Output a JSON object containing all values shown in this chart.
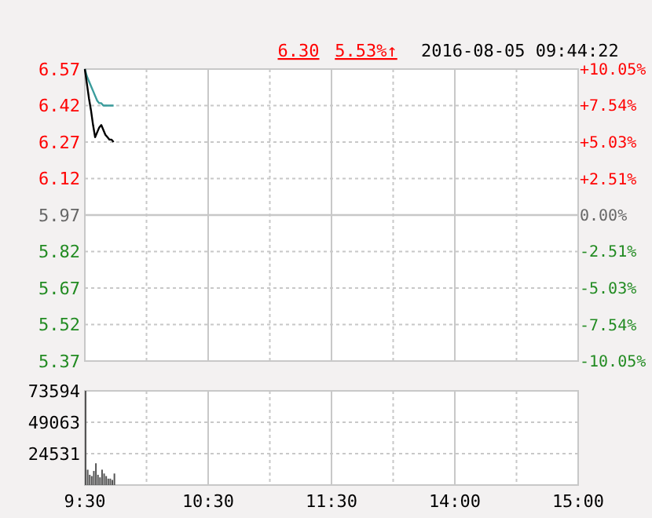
{
  "chart_data": [
    {
      "type": "line",
      "annotations": [
        "6.30",
        "5.53%↑",
        "2016-08-05 09:44:22"
      ],
      "categories": [
        null,
        null,
        null,
        null,
        null,
        null,
        null,
        null,
        null,
        null,
        null,
        null,
        null,
        null,
        null,
        null,
        null,
        null,
        null,
        null,
        null,
        null,
        null,
        null,
        null,
        null,
        null,
        null,
        null,
        null,
        null,
        null,
        null,
        null,
        null,
        null,
        null,
        null,
        null,
        null,
        null,
        null,
        null,
        null,
        null,
        null,
        null,
        null,
        null,
        null,
        null,
        null,
        null,
        null,
        null,
        null,
        null,
        null,
        null,
        null,
        null,
        null,
        null,
        null,
        null,
        null,
        null,
        null,
        null,
        null,
        null,
        null,
        null,
        null,
        null,
        null,
        null,
        null,
        null,
        null,
        null,
        null,
        null,
        null,
        null,
        null,
        null,
        null,
        null,
        null,
        null,
        null,
        null,
        null,
        null,
        null,
        null,
        null,
        null,
        null,
        null,
        null,
        null,
        null,
        null,
        null,
        null,
        null,
        null,
        null,
        null,
        null,
        null,
        null,
        null,
        null,
        null,
        null,
        null,
        null,
        null,
        null,
        null,
        null,
        null,
        null,
        null,
        null,
        null,
        null,
        null,
        null,
        null,
        null,
        null,
        null,
        null,
        null,
        null,
        null,
        null,
        null,
        null,
        null,
        null,
        null,
        null,
        null,
        null,
        null,
        null,
        null,
        null,
        null,
        null,
        null,
        null,
        null,
        null,
        null,
        null,
        null,
        null,
        null,
        null,
        null,
        null,
        null,
        null,
        null,
        null,
        null,
        null,
        null,
        null,
        null,
        null,
        null,
        null,
        null,
        null,
        null,
        null,
        null,
        null,
        null,
        null,
        null,
        null,
        null,
        null,
        null,
        null,
        null,
        null,
        null,
        null,
        null,
        null,
        null,
        null,
        null,
        null,
        null,
        null,
        null,
        null,
        null,
        null,
        null,
        null,
        null,
        null,
        null,
        null,
        null,
        null,
        null,
        null,
        null,
        null,
        null,
        null,
        null,
        null,
        null,
        null,
        null,
        null,
        null,
        null,
        null,
        null,
        null,
        null,
        null,
        null,
        null,
        null,
        null,
        null
      ],
      "ylim": [
        5.37,
        6.57
      ],
      "yticks": [
        5.37,
        5.52,
        5.67,
        5.82,
        5.97,
        6.12,
        6.27,
        6.42,
        6.57
      ],
      "y2lim": [
        -10.05,
        10.05
      ],
      "y2ticks": [
        {
          "value": -10.05,
          "label": "-10.05%"
        },
        {
          "value": -7.54,
          "label": "-7.54%"
        },
        {
          "value": -5.03,
          "label": "-5.03%"
        },
        {
          "value": -2.51,
          "label": "-2.51%"
        },
        {
          "value": 0,
          "label": "0.00%"
        },
        {
          "value": 2.51,
          "label": "+2.51%"
        },
        {
          "value": 5.03,
          "label": "+5.03%"
        },
        {
          "value": 7.54,
          "label": "+7.54%"
        },
        {
          "value": 10.05,
          "label": "+10.05%"
        }
      ],
      "tick_labels": "y",
      "grid": true,
      "ref_lines": [
        {
          "axis": "y",
          "value": 5.97,
          "color": "#c8c8c8"
        }
      ],
      "series": [
        {
          "color": "#3a9c9c",
          "values": [
            6.57,
            6.54,
            6.52,
            6.5,
            6.48,
            6.46,
            6.44,
            6.43,
            6.43,
            6.42,
            6.42,
            6.42,
            6.42,
            6.42,
            6.42,
            null,
            null,
            null,
            null,
            null,
            null,
            null,
            null,
            null,
            null,
            null,
            null,
            null,
            null,
            null,
            null,
            null,
            null,
            null,
            null,
            null,
            null,
            null,
            null,
            null,
            null,
            null,
            null,
            null,
            null,
            null,
            null,
            null,
            null,
            null,
            null,
            null,
            null,
            null,
            null,
            null,
            null,
            null,
            null,
            null,
            null,
            null,
            null,
            null,
            null,
            null,
            null,
            null,
            null,
            null,
            null,
            null,
            null,
            null,
            null,
            null,
            null,
            null,
            null,
            null,
            null,
            null,
            null,
            null,
            null,
            null,
            null,
            null,
            null,
            null,
            null,
            null,
            null,
            null,
            null,
            null,
            null,
            null,
            null,
            null,
            null,
            null,
            null,
            null,
            null,
            null,
            null,
            null,
            null,
            null,
            null,
            null,
            null,
            null,
            null,
            null,
            null,
            null,
            null,
            null,
            null,
            null,
            null,
            null,
            null,
            null,
            null,
            null,
            null,
            null,
            null,
            null,
            null,
            null,
            null,
            null,
            null,
            null,
            null,
            null,
            null,
            null,
            null,
            null,
            null,
            null,
            null,
            null,
            null,
            null,
            null,
            null,
            null,
            null,
            null,
            null,
            null,
            null,
            null,
            null,
            null,
            null,
            null,
            null,
            null,
            null,
            null,
            null,
            null,
            null,
            null,
            null,
            null,
            null,
            null,
            null,
            null,
            null,
            null,
            null,
            null,
            null,
            null,
            null,
            null,
            null,
            null,
            null,
            null,
            null,
            null,
            null,
            null,
            null,
            null,
            null,
            null,
            null,
            null,
            null,
            null,
            null,
            null,
            null,
            null,
            null,
            null,
            null,
            null,
            null,
            null,
            null,
            null,
            null,
            null,
            null,
            null,
            null,
            null,
            null,
            null,
            null,
            null,
            null,
            null,
            null,
            null,
            null,
            null,
            null,
            null,
            null,
            null,
            null,
            null,
            null,
            null,
            null,
            null,
            null,
            null
          ]
        },
        {
          "color": "#000000",
          "values": [
            6.57,
            6.51,
            6.45,
            6.4,
            6.34,
            6.29,
            6.31,
            6.33,
            6.34,
            6.32,
            6.3,
            6.29,
            6.28,
            6.28,
            6.27,
            null,
            null,
            null,
            null,
            null,
            null,
            null,
            null,
            null,
            null,
            null,
            null,
            null,
            null,
            null,
            null,
            null,
            null,
            null,
            null,
            null,
            null,
            null,
            null,
            null,
            null,
            null,
            null,
            null,
            null,
            null,
            null,
            null,
            null,
            null,
            null,
            null,
            null,
            null,
            null,
            null,
            null,
            null,
            null,
            null,
            null,
            null,
            null,
            null,
            null,
            null,
            null,
            null,
            null,
            null,
            null,
            null,
            null,
            null,
            null,
            null,
            null,
            null,
            null,
            null,
            null,
            null,
            null,
            null,
            null,
            null,
            null,
            null,
            null,
            null,
            null,
            null,
            null,
            null,
            null,
            null,
            null,
            null,
            null,
            null,
            null,
            null,
            null,
            null,
            null,
            null,
            null,
            null,
            null,
            null,
            null,
            null,
            null,
            null,
            null,
            null,
            null,
            null,
            null,
            null,
            null,
            null,
            null,
            null,
            null,
            null,
            null,
            null,
            null,
            null,
            null,
            null,
            null,
            null,
            null,
            null,
            null,
            null,
            null,
            null,
            null,
            null,
            null,
            null,
            null,
            null,
            null,
            null,
            null,
            null,
            null,
            null,
            null,
            null,
            null,
            null,
            null,
            null,
            null,
            null,
            null,
            null,
            null,
            null,
            null,
            null,
            null,
            null,
            null,
            null,
            null,
            null,
            null,
            null,
            null,
            null,
            null,
            null,
            null,
            null,
            null,
            null,
            null,
            null,
            null,
            null,
            null,
            null,
            null,
            null,
            null,
            null,
            null,
            null,
            null,
            null,
            null,
            null,
            null,
            null,
            null,
            null,
            null,
            null,
            null,
            null,
            null,
            null,
            null,
            null,
            null,
            null,
            null,
            null,
            null,
            null,
            null,
            null,
            null,
            null,
            null,
            null,
            null,
            null,
            null,
            null,
            null,
            null,
            null,
            null,
            null,
            null,
            null,
            null,
            null,
            null,
            null,
            null,
            null,
            null,
            null
          ]
        }
      ]
    },
    {
      "type": "bar",
      "categories": [
        "9:30",
        null,
        null,
        null,
        null,
        null,
        null,
        null,
        null,
        null,
        null,
        null,
        null,
        null,
        null,
        null,
        null,
        null,
        null,
        null,
        null,
        null,
        null,
        null,
        null,
        null,
        null,
        null,
        null,
        null,
        null,
        null,
        null,
        null,
        null,
        null,
        null,
        null,
        null,
        null,
        null,
        null,
        null,
        null,
        null,
        null,
        null,
        null,
        null,
        null,
        null,
        null,
        null,
        null,
        null,
        null,
        null,
        null,
        null,
        null,
        "10:30",
        null,
        null,
        null,
        null,
        null,
        null,
        null,
        null,
        null,
        null,
        null,
        null,
        null,
        null,
        null,
        null,
        null,
        null,
        null,
        null,
        null,
        null,
        null,
        null,
        null,
        null,
        null,
        null,
        null,
        null,
        null,
        null,
        null,
        null,
        null,
        null,
        null,
        null,
        null,
        null,
        null,
        null,
        null,
        null,
        null,
        null,
        null,
        null,
        null,
        null,
        null,
        null,
        null,
        null,
        null,
        null,
        null,
        null,
        null,
        "11:30",
        null,
        null,
        null,
        null,
        null,
        null,
        null,
        null,
        null,
        null,
        null,
        null,
        null,
        null,
        null,
        null,
        null,
        null,
        null,
        null,
        null,
        null,
        null,
        null,
        null,
        null,
        null,
        null,
        null,
        null,
        null,
        null,
        null,
        null,
        null,
        null,
        null,
        null,
        null,
        null,
        null,
        null,
        null,
        null,
        null,
        null,
        null,
        null,
        null,
        null,
        null,
        null,
        null,
        null,
        null,
        null,
        null,
        null,
        null,
        "14:00",
        null,
        null,
        null,
        null,
        null,
        null,
        null,
        null,
        null,
        null,
        null,
        null,
        null,
        null,
        null,
        null,
        null,
        null,
        null,
        null,
        null,
        null,
        null,
        null,
        null,
        null,
        null,
        null,
        null,
        null,
        null,
        null,
        null,
        null,
        null,
        null,
        null,
        null,
        null,
        null,
        null,
        null,
        null,
        null,
        null,
        null,
        null,
        null,
        null,
        null,
        null,
        null,
        null,
        null,
        null,
        null,
        null,
        null,
        null,
        "15:00"
      ],
      "values": [
        73594,
        12000,
        8000,
        7000,
        11000,
        17000,
        8000,
        6000,
        12000,
        9000,
        7000,
        5000,
        5000,
        4000,
        9000,
        null,
        null,
        null,
        null,
        null,
        null,
        null,
        null,
        null,
        null,
        null,
        null,
        null,
        null,
        null,
        null,
        null,
        null,
        null,
        null,
        null,
        null,
        null,
        null,
        null,
        null,
        null,
        null,
        null,
        null,
        null,
        null,
        null,
        null,
        null,
        null,
        null,
        null,
        null,
        null,
        null,
        null,
        null,
        null,
        null,
        null,
        null,
        null,
        null,
        null,
        null,
        null,
        null,
        null,
        null,
        null,
        null,
        null,
        null,
        null,
        null,
        null,
        null,
        null,
        null,
        null,
        null,
        null,
        null,
        null,
        null,
        null,
        null,
        null,
        null,
        null,
        null,
        null,
        null,
        null,
        null,
        null,
        null,
        null,
        null,
        null,
        null,
        null,
        null,
        null,
        null,
        null,
        null,
        null,
        null,
        null,
        null,
        null,
        null,
        null,
        null,
        null,
        null,
        null,
        null,
        null,
        null,
        null,
        null,
        null,
        null,
        null,
        null,
        null,
        null,
        null,
        null,
        null,
        null,
        null,
        null,
        null,
        null,
        null,
        null,
        null,
        null,
        null,
        null,
        null,
        null,
        null,
        null,
        null,
        null,
        null,
        null,
        null,
        null,
        null,
        null,
        null,
        null,
        null,
        null,
        null,
        null,
        null,
        null,
        null,
        null,
        null,
        null,
        null,
        null,
        null,
        null,
        null,
        null,
        null,
        null,
        null,
        null,
        null,
        null,
        null,
        null,
        null,
        null,
        null,
        null,
        null,
        null,
        null,
        null,
        null,
        null,
        null,
        null,
        null,
        null,
        null,
        null,
        null,
        null,
        null,
        null,
        null,
        null,
        null,
        null,
        null,
        null,
        null,
        null,
        null,
        null,
        null,
        null,
        null,
        null,
        null,
        null,
        null,
        null,
        null,
        null,
        null,
        null,
        null,
        null,
        null,
        null,
        null,
        null,
        null,
        null,
        null,
        null,
        null,
        null,
        null,
        null,
        null,
        null,
        null
      ],
      "color": "#555555",
      "ylim": [
        0,
        73594
      ],
      "yticks": [
        24531,
        49063,
        73594
      ],
      "grid": true
    }
  ]
}
